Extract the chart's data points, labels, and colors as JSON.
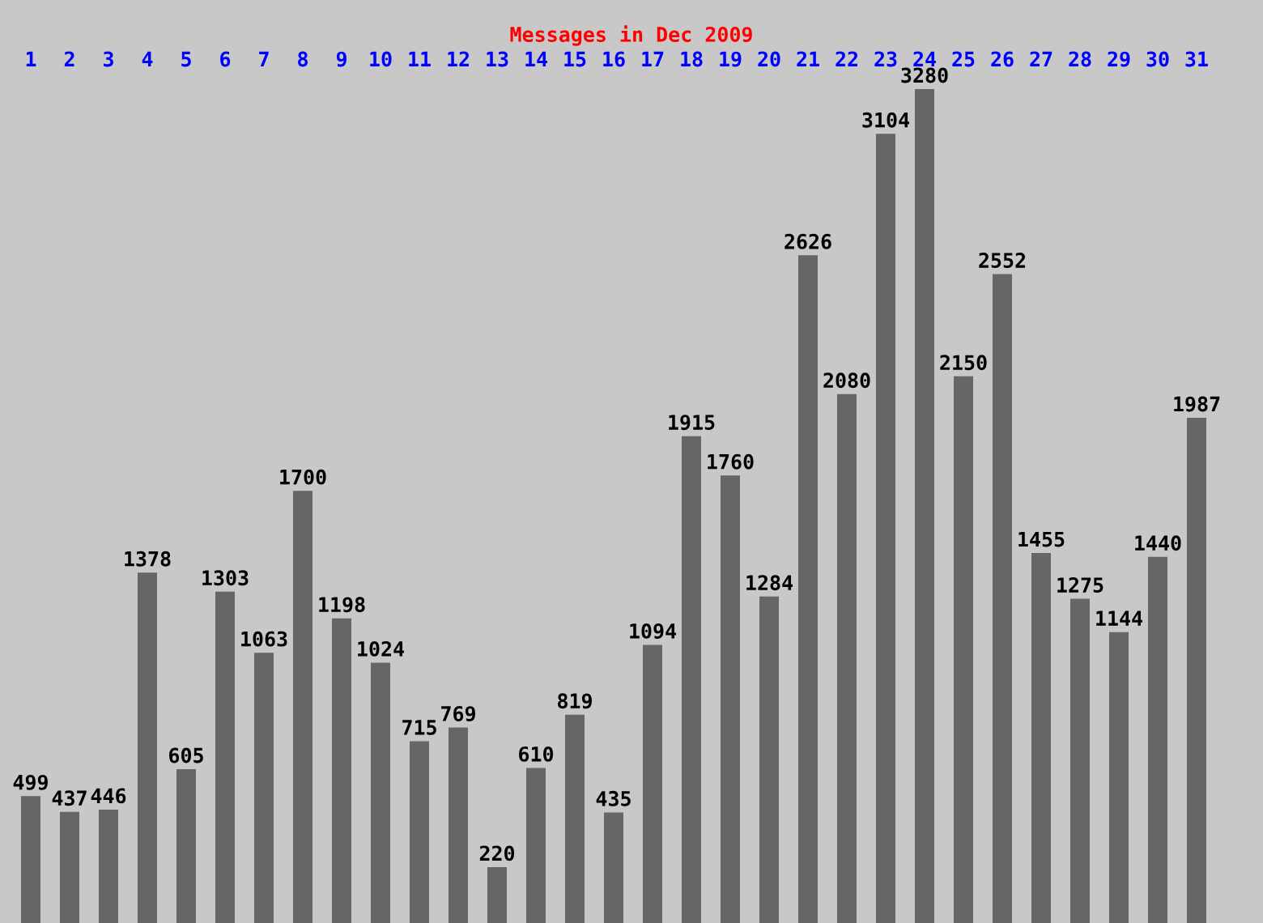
{
  "chart_data": {
    "type": "bar",
    "title": "Messages in Dec 2009",
    "categories": [
      "1",
      "2",
      "3",
      "4",
      "5",
      "6",
      "7",
      "8",
      "9",
      "10",
      "11",
      "12",
      "13",
      "14",
      "15",
      "16",
      "17",
      "18",
      "19",
      "20",
      "21",
      "22",
      "23",
      "24",
      "25",
      "26",
      "27",
      "28",
      "29",
      "30",
      "31"
    ],
    "values": [
      499,
      437,
      446,
      1378,
      605,
      1303,
      1063,
      1700,
      1198,
      1024,
      715,
      769,
      220,
      610,
      819,
      435,
      1094,
      1915,
      1760,
      1284,
      2626,
      2080,
      3104,
      3280,
      2150,
      2552,
      1455,
      1275,
      1144,
      1440,
      1987
    ],
    "color": "#666666",
    "data_labels": true,
    "grid": false,
    "legend": false,
    "tick_labels": "x"
  }
}
